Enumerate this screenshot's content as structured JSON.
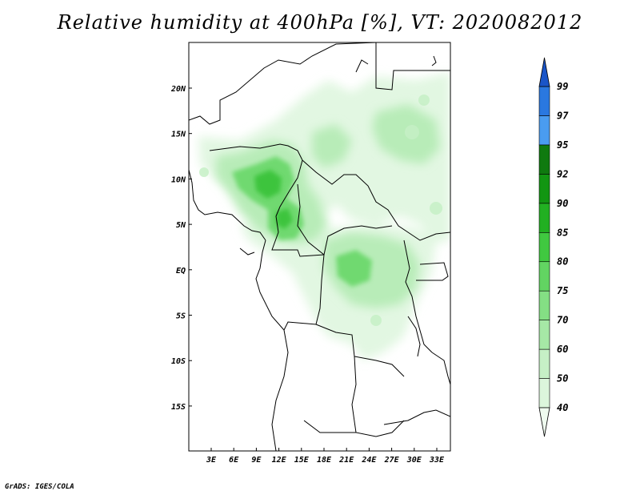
{
  "title": "Relative humidity at 400hPa [%], VT: 2020082012",
  "credit": "GrADS: IGES/COLA",
  "lon_labels": [
    "3E",
    "6E",
    "9E",
    "12E",
    "15E",
    "18E",
    "21E",
    "24E",
    "27E",
    "30E",
    "33E"
  ],
  "lat_labels": [
    "20N",
    "15N",
    "10N",
    "5N",
    "EQ",
    "5S",
    "10S",
    "15S"
  ],
  "colorbar": {
    "levels": [
      "40",
      "50",
      "60",
      "70",
      "75",
      "80",
      "85",
      "90",
      "92",
      "95",
      "97",
      "99"
    ],
    "colors": [
      "#effbef",
      "#dcf6dc",
      "#c6f0c6",
      "#a6e8a6",
      "#84df84",
      "#62d462",
      "#40c840",
      "#22b022",
      "#129612",
      "#0f7a0f",
      "#4a9cf0",
      "#2a78e0",
      "#1a55c8"
    ]
  },
  "colors": {
    "grid_line": "#000000",
    "background": "#ffffff"
  }
}
